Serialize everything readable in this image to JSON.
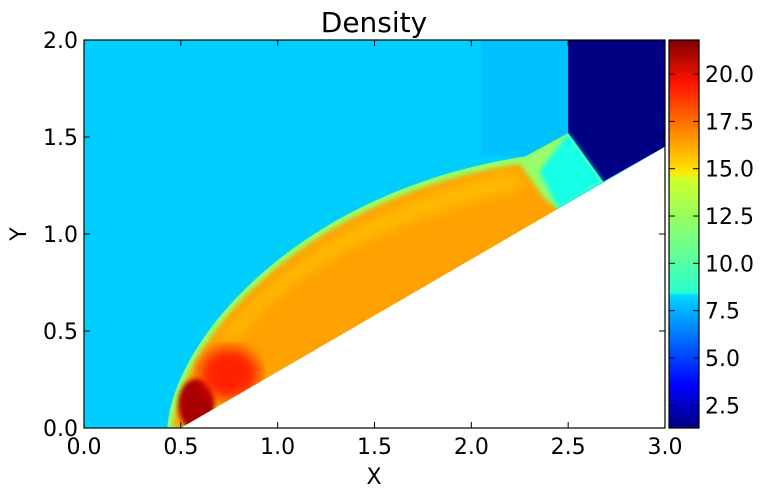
{
  "chart_data": {
    "type": "heatmap",
    "title": "Density",
    "xlabel": "X",
    "ylabel": "Y",
    "xlim": [
      0.0,
      3.0
    ],
    "ylim": [
      0.0,
      2.0
    ],
    "x_ticks": [
      0.0,
      0.5,
      1.0,
      1.5,
      2.0,
      2.5,
      3.0
    ],
    "y_ticks": [
      0.0,
      0.5,
      1.0,
      1.5,
      2.0
    ],
    "x_tick_labels": [
      "0.0",
      "0.5",
      "1.0",
      "1.5",
      "2.0",
      "2.5",
      "3.0"
    ],
    "y_tick_labels": [
      "0.0",
      "0.5",
      "1.0",
      "1.5",
      "2.0"
    ],
    "colormap": "jet",
    "colorbar": {
      "range": [
        1.3,
        21.8
      ],
      "ticks": [
        2.5,
        5.0,
        7.5,
        10.0,
        12.5,
        15.0,
        17.5,
        20.0
      ],
      "tick_labels": [
        "2.5",
        "5.0",
        "7.5",
        "10.0",
        "12.5",
        "15.0",
        "17.5",
        "20.0"
      ]
    },
    "field_regions": {
      "freestream_density": 8.0,
      "wedge_surface": {
        "from": [
          0.5,
          0.0
        ],
        "to": [
          3.0,
          1.45
        ]
      },
      "bow_shock_foot_x": 0.43,
      "bow_shock_top": [
        2.28,
        1.4
      ],
      "upper_right_block": {
        "x": [
          2.5,
          3.0
        ],
        "y": [
          1.52,
          2.0
        ],
        "density": 1.4
      },
      "post_shock_peak_density": 21.0,
      "post_shock_typical_density": 16.0
    }
  }
}
